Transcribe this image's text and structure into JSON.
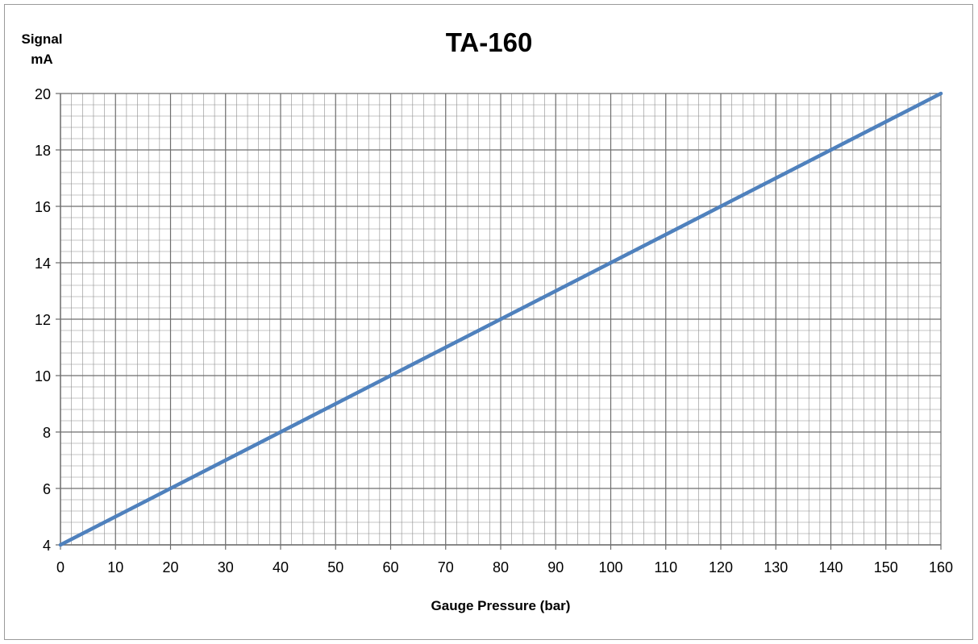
{
  "chart_data": {
    "type": "line",
    "title": "TA-160",
    "ylabel_lines": [
      "Signal",
      "mA"
    ],
    "xlabel": "Gauge Pressure (bar)",
    "xlim": [
      0,
      160
    ],
    "ylim": [
      4,
      20
    ],
    "x_ticks": [
      0,
      10,
      20,
      30,
      40,
      50,
      60,
      70,
      80,
      90,
      100,
      110,
      120,
      130,
      140,
      150,
      160
    ],
    "y_ticks": [
      4,
      6,
      8,
      10,
      12,
      14,
      16,
      18,
      20
    ],
    "x_minor_step": 2,
    "y_minor_step": 0.4,
    "grid": true,
    "series": [
      {
        "x": [
          0,
          160
        ],
        "y": [
          4,
          20
        ]
      }
    ],
    "colors": {
      "line": "#4f81bd",
      "grid": "#8c8c8c"
    }
  }
}
